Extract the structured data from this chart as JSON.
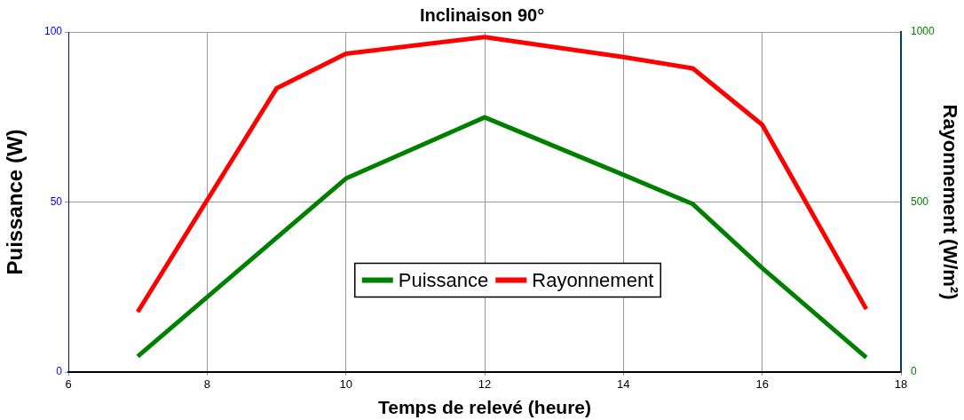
{
  "chart_data": {
    "type": "line",
    "title": "Inclinaison 90°",
    "xlabel": "Temps de relevé (heure)",
    "ylabel": "Puissance (W)",
    "y2label": "Rayonnement (W/m²)",
    "xlim": [
      6,
      18
    ],
    "xticks": [
      6,
      8,
      10,
      12,
      14,
      16,
      18
    ],
    "ylim": [
      0,
      100
    ],
    "yticks": [
      0,
      50,
      100
    ],
    "y2lim": [
      0,
      1000
    ],
    "y2ticks": [
      0,
      500,
      1000
    ],
    "grid": true,
    "legend": "bottom",
    "marker": "none",
    "line_style": "solid",
    "series": [
      {
        "name": "Puissance",
        "color": "#008000",
        "x": [
          7,
          10,
          12,
          14,
          15,
          16,
          17.5
        ],
        "values": [
          4.6,
          56.9,
          74.9,
          58,
          49.4,
          30.6,
          4.3
        ]
      },
      {
        "name": "Rayonnement",
        "color": "#ff0000",
        "axis": "y2",
        "x": [
          7,
          9,
          10,
          12,
          14,
          15,
          16,
          17.5
        ],
        "values": [
          177,
          834,
          936,
          985,
          926,
          893,
          727,
          185
        ]
      }
    ]
  }
}
